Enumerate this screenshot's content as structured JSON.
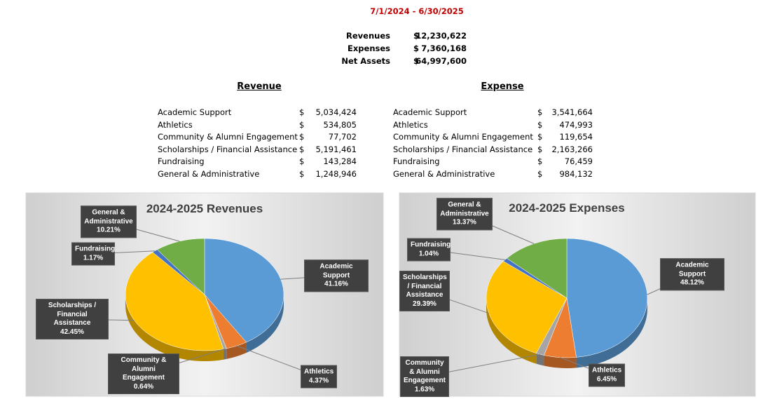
{
  "header": {
    "period": "7/1/2024 - 6/30/2025"
  },
  "summary": {
    "rows": [
      [
        "Revenues",
        "$",
        "12,230,622"
      ],
      [
        "Expenses",
        "$",
        "7,360,168"
      ],
      [
        "Net Assets",
        "$",
        "64,997,600"
      ]
    ]
  },
  "revenue": {
    "title": "Revenue",
    "rows": [
      [
        "Academic Support",
        "$",
        "5,034,424"
      ],
      [
        "Athletics",
        "$",
        "534,805"
      ],
      [
        "Community & Alumni Engagement",
        "$",
        "77,702"
      ],
      [
        "Scholarships / Financial Assistance",
        "$",
        "5,191,461"
      ],
      [
        "Fundraising",
        "$",
        "143,284"
      ],
      [
        "General & Administrative",
        "$",
        "1,248,946"
      ]
    ]
  },
  "expense": {
    "title": "Expense",
    "rows": [
      [
        "Academic Support",
        "$",
        "3,541,664"
      ],
      [
        "Athletics",
        "$",
        "474,993"
      ],
      [
        "Community & Alumni Engagement",
        "$",
        "119,654"
      ],
      [
        "Scholarships / Financial Assistance",
        "$",
        "2,163,266"
      ],
      [
        "Fundraising",
        "$",
        "76,459"
      ],
      [
        "General & Administrative",
        "$",
        "984,132"
      ]
    ]
  },
  "chart_data": [
    {
      "type": "pie",
      "title": "2024-2025 Revenues",
      "categories": [
        "Academic Support",
        "Athletics",
        "Community & Alumni Engagement",
        "Scholarships / Financial Assistance",
        "Fundraising",
        "General & Administrative"
      ],
      "values": [
        41.16,
        4.37,
        0.64,
        42.45,
        1.17,
        10.21
      ],
      "value_labels": [
        "41.16%",
        "4.37%",
        "0.64%",
        "42.45%",
        "1.17%",
        "10.21%"
      ],
      "colors": [
        "#5b9bd5",
        "#ed7d31",
        "#a5a5a5",
        "#ffc000",
        "#4472c4",
        "#70ad47"
      ]
    },
    {
      "type": "pie",
      "title": "2024-2025 Expenses",
      "categories": [
        "Academic Support",
        "Athletics",
        "Community & Alumni Engagement",
        "Scholarships / Financial Assistance",
        "Fundraising",
        "General & Administrative"
      ],
      "values": [
        48.12,
        6.45,
        1.63,
        29.39,
        1.04,
        13.37
      ],
      "value_labels": [
        "48.12%",
        "6.45%",
        "1.63%",
        "29.39%",
        "1.04%",
        "13.37%"
      ],
      "colors": [
        "#5b9bd5",
        "#ed7d31",
        "#a5a5a5",
        "#ffc000",
        "#4472c4",
        "#70ad47"
      ]
    }
  ]
}
